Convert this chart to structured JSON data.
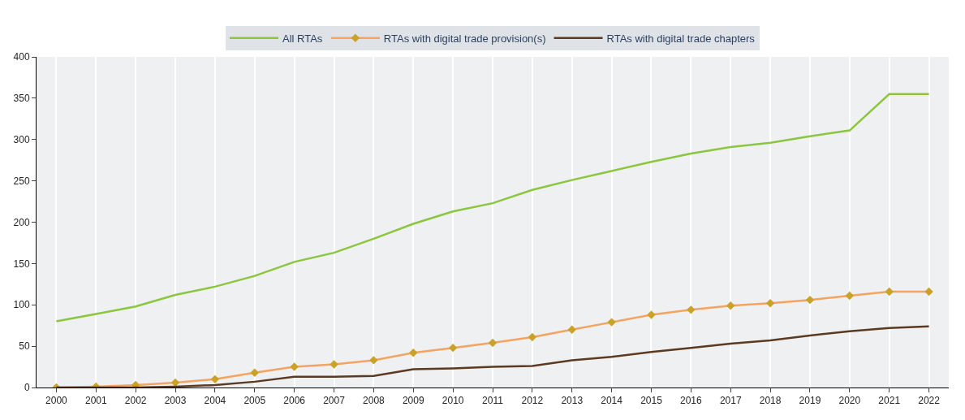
{
  "chart_data": {
    "type": "line",
    "categories": [
      "2000",
      "2001",
      "2002",
      "2003",
      "2004",
      "2005",
      "2006",
      "2007",
      "2008",
      "2009",
      "2010",
      "2011",
      "2012",
      "2013",
      "2014",
      "2015",
      "2016",
      "2017",
      "2018",
      "2019",
      "2020",
      "2021",
      "2022"
    ],
    "series": [
      {
        "name": "All RTAs",
        "color": "#8cc63f",
        "marker": "none",
        "values": [
          80,
          89,
          98,
          112,
          122,
          135,
          152,
          163,
          180,
          198,
          213,
          223,
          239,
          251,
          262,
          273,
          283,
          291,
          296,
          304,
          311,
          355,
          355
        ]
      },
      {
        "name": "RTAs with digital trade provision(s)",
        "color": "#f4a460",
        "marker": "diamond",
        "values": [
          0,
          1,
          3,
          6,
          10,
          18,
          25,
          28,
          33,
          42,
          48,
          54,
          61,
          70,
          79,
          88,
          94,
          99,
          102,
          106,
          111,
          116,
          116
        ]
      },
      {
        "name": "RTAs with digital trade chapters",
        "color": "#5c3a21",
        "marker": "none",
        "values": [
          0,
          0,
          0,
          1,
          3,
          7,
          13,
          13,
          14,
          22,
          23,
          25,
          26,
          33,
          37,
          43,
          48,
          53,
          57,
          63,
          68,
          72,
          74
        ]
      }
    ],
    "ylim": [
      0,
      400
    ],
    "yticks": [
      0,
      50,
      100,
      150,
      200,
      250,
      300,
      350,
      400
    ],
    "grid": "x",
    "legend": "top"
  }
}
